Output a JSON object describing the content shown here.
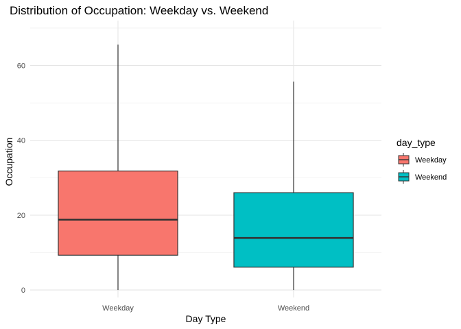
{
  "chart_data": {
    "type": "boxplot",
    "title": "Distribution of Occupation: Weekday vs. Weekend",
    "xlabel": "Day Type",
    "ylabel": "Occupation",
    "ylim": [
      -2,
      72
    ],
    "yticks": [
      0,
      20,
      40,
      60
    ],
    "grid": true,
    "legend": {
      "title": "day_type",
      "placement": "right"
    },
    "categories": [
      "Weekday",
      "Weekend"
    ],
    "series": [
      {
        "name": "Weekday",
        "color": "#F8766D",
        "min": 0,
        "q1": 9.3,
        "median": 18.8,
        "q3": 31.8,
        "max": 65.6
      },
      {
        "name": "Weekend",
        "color": "#00BFC4",
        "min": 0,
        "q1": 6.1,
        "median": 13.9,
        "q3": 26.0,
        "max": 55.7
      }
    ]
  }
}
